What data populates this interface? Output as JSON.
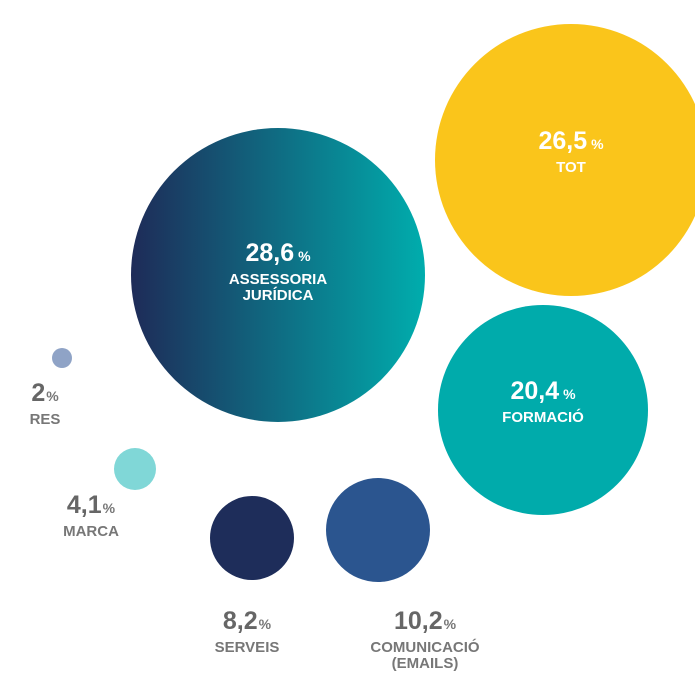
{
  "chart_data": {
    "type": "bubble",
    "categories": [
      "ASSESSORIA JURÍDICA",
      "TOT",
      "FORMACIÓ",
      "COMUNICACIÓ (EMAILS)",
      "SERVEIS",
      "MARCA",
      "RES"
    ],
    "values": [
      28.6,
      26.5,
      20.4,
      10.2,
      8.2,
      4.1,
      2
    ],
    "value_labels": [
      "28,6",
      "26,5",
      "20,4",
      "10,2",
      "8,2",
      "4,1",
      "2"
    ],
    "unit": "%",
    "colors": [
      [
        "#1e2b58",
        "#00adad"
      ],
      "#fac51b",
      "#00abab",
      "#2b558f",
      "#1e2d5a",
      "#80d7d7",
      "#8fa3c6"
    ]
  }
}
